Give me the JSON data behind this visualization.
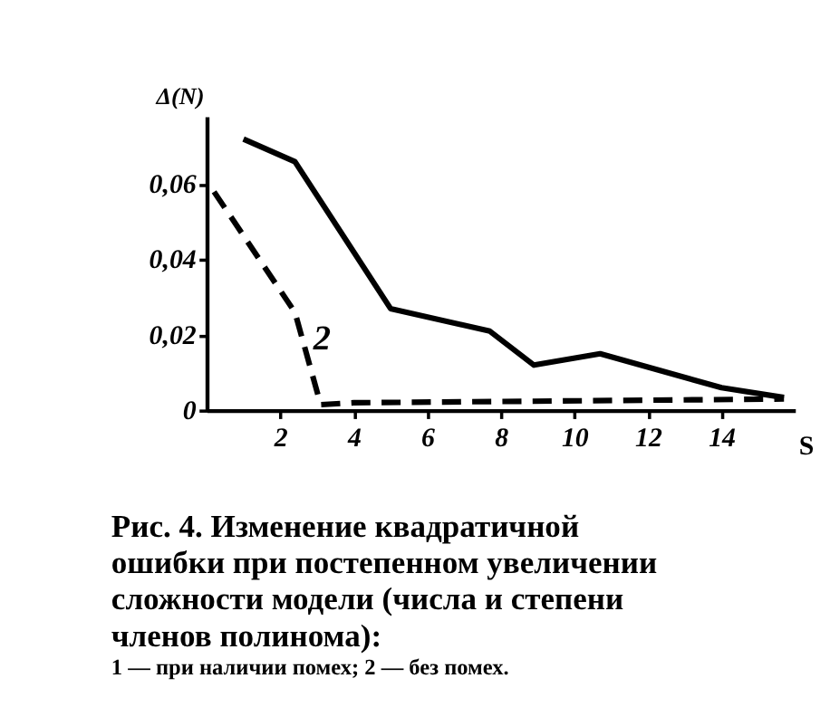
{
  "chart_data": {
    "type": "line",
    "ylabel": "Δ(N)",
    "xlabel": "S",
    "xlim": [
      0,
      16
    ],
    "xticks": [
      2,
      4,
      6,
      8,
      10,
      12,
      14
    ],
    "ylim": [
      0,
      0.078
    ],
    "yticks": [
      0,
      {
        "value": 0.02,
        "label": "0,02"
      },
      {
        "value": 0.04,
        "label": "0,04"
      },
      {
        "value": 0.06,
        "label": "0,06"
      }
    ],
    "grid": false,
    "marker": "none",
    "series": [
      {
        "color": "#000000",
        "line_style": "solid",
        "x": [
          1,
          2.4,
          5,
          7.7,
          8.9,
          10.7,
          14,
          15.7
        ],
        "values": [
          0.072,
          0.066,
          0.027,
          0.021,
          0.012,
          0.015,
          0.006,
          0.0034
        ]
      },
      {
        "color": "#000000",
        "line_style": "dashed",
        "x": [
          0.2,
          2.4,
          3.1,
          4,
          15.7
        ],
        "values": [
          0.058,
          0.026,
          0.0015,
          0.002,
          0.003
        ]
      }
    ],
    "annotations": [
      {
        "text": "2",
        "x": 2.9,
        "y": 0.019
      },
      "Рис. 4. Изменение квадратичной ошибки при постепенном увеличении сложности модели (числа и степени членов полинома):",
      "1 — при наличии помех; 2 — без помех."
    ]
  }
}
